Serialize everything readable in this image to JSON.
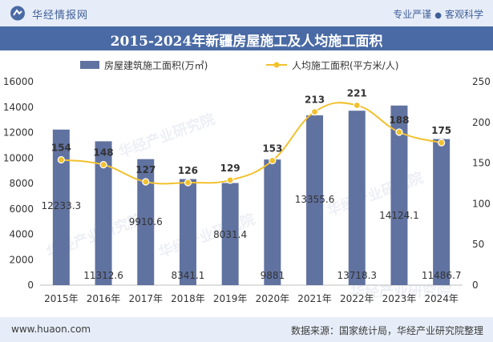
{
  "header": {
    "brand": "华经情报网",
    "slogan_left": "专业严谨",
    "slogan_sep": "●",
    "slogan_right": "客观科学"
  },
  "watermark": "华经产业研究院",
  "footer": {
    "url": "www.huaon.com",
    "source": "数据来源：国家统计局，华经产业研究院整理"
  },
  "chart_data": {
    "type": "bar",
    "title": "2015-2024年新疆房屋施工及人均施工面积",
    "categories": [
      "2015年",
      "2016年",
      "2017年",
      "2018年",
      "2019年",
      "2020年",
      "2021年",
      "2022年",
      "2023年",
      "2024年"
    ],
    "series": [
      {
        "name": "房屋建筑施工面积(万㎡)",
        "type": "bar",
        "axis": "left",
        "color": "#6072a0",
        "values": [
          12233.3,
          11312.6,
          9910.6,
          8341.1,
          8031.4,
          9881,
          13355.6,
          13718.3,
          14124.1,
          11486.7
        ],
        "labels": [
          "12233.3",
          "11312.6",
          "9910.6",
          "8341.1",
          "8031.4",
          "9881",
          "13355.6",
          "13718.3",
          "14124.1",
          "11486.7"
        ]
      },
      {
        "name": "人均施工面积(平方米/人)",
        "type": "line",
        "axis": "right",
        "color": "#f2c12e",
        "values": [
          154,
          148,
          127,
          126,
          129,
          153,
          213,
          221,
          188,
          175
        ],
        "labels": [
          "154",
          "148",
          "127",
          "126",
          "129",
          "153",
          "213",
          "221",
          "188",
          "175"
        ]
      }
    ],
    "y_left": {
      "range": [
        0,
        16000
      ],
      "ticks": [
        "0",
        "2000",
        "4000",
        "6000",
        "8000",
        "10000",
        "12000",
        "14000",
        "16000"
      ]
    },
    "y_right": {
      "range": [
        0,
        250
      ],
      "ticks": [
        "0",
        "50",
        "100",
        "150",
        "200",
        "250"
      ]
    },
    "legend_position": "top",
    "grid": false
  }
}
